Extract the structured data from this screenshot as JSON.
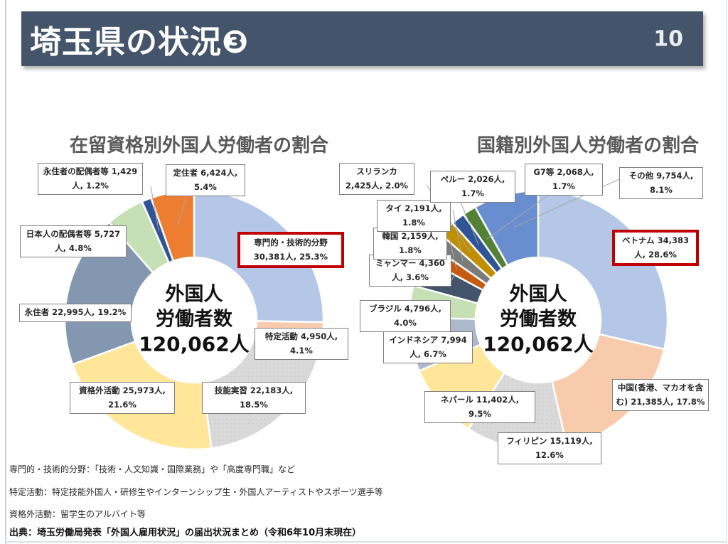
{
  "header": {
    "title": "埼玉県の状況❸",
    "page_number": "10"
  },
  "chart_data": [
    {
      "type": "pie",
      "subtype": "donut",
      "title": "在留資格別外国人労働者の割合",
      "center_lines": [
        "外国人",
        "労働者数",
        "120,062人"
      ],
      "total_count": "120,062",
      "unit": "人",
      "pct_suffix": "%",
      "segments": [
        {
          "name": "専門的・技術的分野",
          "count": "30,381",
          "pct": 25.3,
          "color": "#B4C7E7",
          "highlight": true
        },
        {
          "name": "特定活動",
          "count": "4,950",
          "pct": 4.1,
          "color": "#F8CBAD"
        },
        {
          "name": "技能実習",
          "count": "22,183",
          "pct": 18.5,
          "color": "#D9D9D9",
          "texture": "dots"
        },
        {
          "name": "資格外活動",
          "count": "25,973",
          "pct": 21.6,
          "color": "#FFE699"
        },
        {
          "name": "永住者",
          "count": "22,995",
          "pct": 19.2,
          "color": "#8497B0"
        },
        {
          "name": "日本人の配偶者等",
          "count": "5,727",
          "pct": 4.8,
          "color": "#C5E0B4"
        },
        {
          "name": "永住者の配偶者等",
          "count": "1,429",
          "pct": 1.2,
          "color": "#2F5597"
        },
        {
          "name": "定住者",
          "count": "6,424",
          "pct": 5.4,
          "color": "#ED7D31"
        }
      ]
    },
    {
      "type": "pie",
      "subtype": "donut",
      "title": "国籍別外国人労働者の割合",
      "center_lines": [
        "外国人",
        "労働者数",
        "120,062人"
      ],
      "total_count": "120,062",
      "unit": "人",
      "pct_suffix": "%",
      "segments": [
        {
          "name": "ベトナム",
          "count": "34,383",
          "pct": 28.6,
          "color": "#B4C7E7",
          "highlight": true
        },
        {
          "name": "中国(香港、マカオを含む)",
          "count": "21,385",
          "pct": 17.8,
          "color": "#F8CBAD"
        },
        {
          "name": "フィリピン",
          "count": "15,119",
          "pct": 12.6,
          "color": "#D9D9D9",
          "texture": "dots"
        },
        {
          "name": "ネパール",
          "count": "11,402",
          "pct": 9.5,
          "color": "#FFE699"
        },
        {
          "name": "インドネシア",
          "count": "7,994",
          "pct": 6.7,
          "color": "#ADB9CA"
        },
        {
          "name": "ブラジル",
          "count": "4,796",
          "pct": 4.0,
          "color": "#C5E0B4"
        },
        {
          "name": "ミャンマー",
          "count": "4,360",
          "pct": 3.6,
          "color": "#44546A"
        },
        {
          "name": "韓国",
          "count": "2,159",
          "pct": 1.8,
          "color": "#C55A11"
        },
        {
          "name": "タイ",
          "count": "2,191",
          "pct": 1.8,
          "color": "#7B7B7B"
        },
        {
          "name": "スリランカ",
          "count": "2,425",
          "pct": 2.0,
          "color": "#BF8F00"
        },
        {
          "name": "ペルー",
          "count": "2,026",
          "pct": 1.7,
          "color": "#2F5597"
        },
        {
          "name": "G7等",
          "count": "2,068",
          "pct": 1.7,
          "color": "#538135"
        },
        {
          "name": "その他",
          "count": "9,754",
          "pct": 8.1,
          "color": "#698ED0"
        }
      ]
    }
  ],
  "footnotes": [
    "専門的・技術的分野：「技術・人文知識・国際業務」や「高度専門職」など",
    "特定活動：特定技能外国人・研修生やインターンシップ生・外国人アーティストやスポーツ選手等",
    "資格外活動：留学生のアルバイト等"
  ],
  "source": "出典：埼玉労働局発表「外国人雇用状況」の届出状況まとめ（令和6年10月末現在）",
  "colors": {
    "header_bg": "#44546A",
    "highlight_border": "#C00000",
    "chart_title_text": "#595959",
    "label_border": "#7F7F7F",
    "leader_line": "#A6A6A6"
  }
}
